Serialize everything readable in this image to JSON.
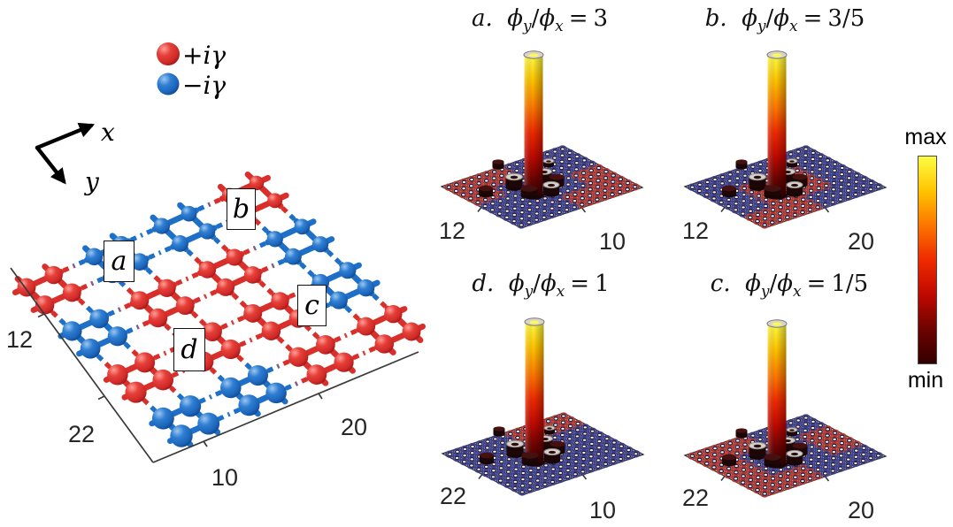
{
  "figure": {
    "background": "#ffffff"
  },
  "legend": {
    "items": [
      {
        "name": "plus-i-gamma",
        "label": "+iγ",
        "color": "#d92f2b"
      },
      {
        "name": "minus-i-gamma",
        "label": "−iγ",
        "color": "#1d6fc7"
      }
    ]
  },
  "axis_key": {
    "x_label": "x",
    "y_label": "y"
  },
  "lattice": {
    "plaquette_labels": {
      "a": "a",
      "b": "b",
      "c": "c",
      "d": "d"
    },
    "y_axis_ticks": [
      "12",
      "22"
    ],
    "x_axis_ticks": [
      "10",
      "20"
    ],
    "site_colors": {
      "R": "#d92f2b",
      "B": "#1d6fc7"
    },
    "domain_pattern": [
      [
        "R",
        "B",
        "B",
        "R"
      ],
      [
        "B",
        "R",
        "R",
        "R"
      ],
      [
        "B",
        "R",
        "R",
        "B"
      ],
      [
        "R",
        "B",
        "R",
        "B"
      ]
    ]
  },
  "formula": {
    "phi": "ϕ",
    "sub_y": "y",
    "sub_x": "x",
    "slash": "/",
    "equals": "="
  },
  "panels": [
    {
      "tag": "a.",
      "ratio": "3",
      "left_tick": "12",
      "right_tick": "10",
      "plane_pattern": [
        [
          "R",
          "R",
          "B",
          "B"
        ],
        [
          "R",
          "B",
          "B",
          "B"
        ],
        [
          "B",
          "B",
          "B",
          "R"
        ],
        [
          "B",
          "B",
          "R",
          "R"
        ]
      ]
    },
    {
      "tag": "b.",
      "ratio": "3/5",
      "left_tick": "12",
      "right_tick": "20",
      "plane_pattern": [
        [
          "B",
          "B",
          "B",
          "B"
        ],
        [
          "B",
          "R",
          "R",
          "B"
        ],
        [
          "B",
          "R",
          "R",
          "B"
        ],
        [
          "R",
          "R",
          "B",
          "B"
        ]
      ]
    },
    {
      "tag": "d.",
      "ratio": "1",
      "left_tick": "22",
      "right_tick": "10",
      "plane_pattern": [
        [
          "B",
          "B",
          "R",
          "R"
        ],
        [
          "B",
          "B",
          "B",
          "B"
        ],
        [
          "B",
          "B",
          "B",
          "B"
        ],
        [
          "B",
          "B",
          "B",
          "B"
        ]
      ]
    },
    {
      "tag": "c.",
      "ratio": "1/5",
      "left_tick": "22",
      "right_tick": "20",
      "plane_pattern": [
        [
          "R",
          "R",
          "B",
          "B"
        ],
        [
          "R",
          "B",
          "B",
          "R"
        ],
        [
          "R",
          "B",
          "B",
          "R"
        ],
        [
          "R",
          "R",
          "B",
          "B"
        ]
      ]
    }
  ],
  "panel_style": {
    "ring_red": "#b5352c",
    "ring_blue": "#3a3f8f",
    "plane_fill": "#f2efec"
  },
  "colorbar": {
    "max_label": "max",
    "min_label": "min",
    "gradient": [
      "#fdfd45",
      "#fec400",
      "#fb7500",
      "#ee2a00",
      "#c00900",
      "#6d0300",
      "#330000"
    ]
  },
  "chart_data": {
    "type": "3d-bar",
    "note": "Each panel shows a single dominant localized peak (amplitude = max of colorbar) above a lattice plane, with small satellite bars near its base.",
    "panels": [
      {
        "label": "a",
        "flux_ratio": "3",
        "x_tick": "10",
        "y_tick": "12",
        "peak": "max"
      },
      {
        "label": "b",
        "flux_ratio": "3/5",
        "x_tick": "20",
        "y_tick": "12",
        "peak": "max"
      },
      {
        "label": "d",
        "flux_ratio": "1",
        "x_tick": "10",
        "y_tick": "22",
        "peak": "max"
      },
      {
        "label": "c",
        "flux_ratio": "1/5",
        "x_tick": "20",
        "y_tick": "22",
        "peak": "max"
      }
    ],
    "colorbar": {
      "top": "max",
      "bottom": "min"
    }
  }
}
